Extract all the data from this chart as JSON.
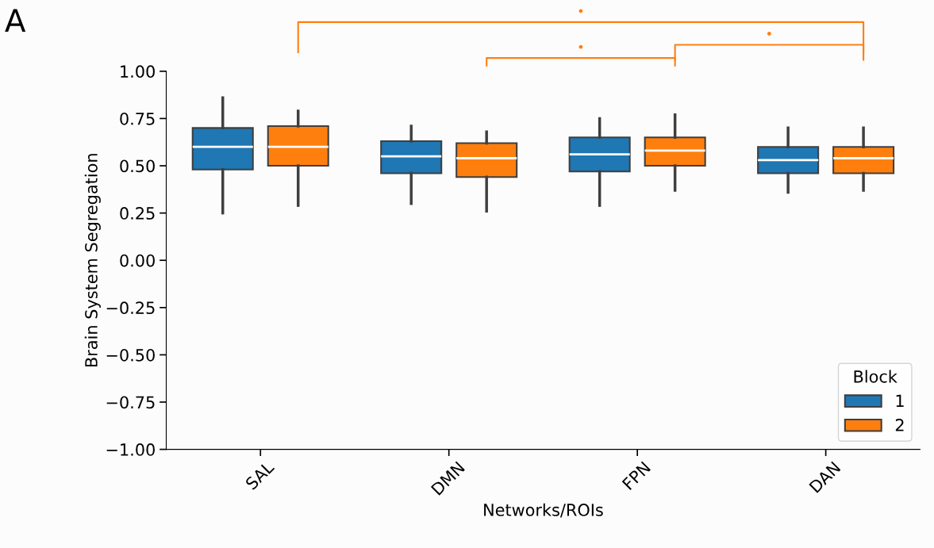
{
  "chart_data": {
    "type": "box",
    "xlabel": "Networks/ROIs",
    "ylabel": "Brain System Segregation",
    "categories": [
      "SAL",
      "DMN",
      "FPN",
      "DAN"
    ],
    "series": [
      {
        "name": "1",
        "color": "#1f77b4",
        "boxes": [
          {
            "low": 0.25,
            "q1": 0.48,
            "median": 0.6,
            "q3": 0.7,
            "high": 0.86
          },
          {
            "low": 0.3,
            "q1": 0.46,
            "median": 0.55,
            "q3": 0.63,
            "high": 0.71
          },
          {
            "low": 0.29,
            "q1": 0.47,
            "median": 0.56,
            "q3": 0.65,
            "high": 0.75
          },
          {
            "low": 0.36,
            "q1": 0.46,
            "median": 0.53,
            "q3": 0.6,
            "high": 0.7
          }
        ]
      },
      {
        "name": "2",
        "color": "#ff7f0e",
        "boxes": [
          {
            "low": 0.29,
            "q1": 0.5,
            "median": 0.6,
            "q3": 0.71,
            "high": 0.79
          },
          {
            "low": 0.26,
            "q1": 0.44,
            "median": 0.54,
            "q3": 0.62,
            "high": 0.68
          },
          {
            "low": 0.37,
            "q1": 0.5,
            "median": 0.58,
            "q3": 0.65,
            "high": 0.77
          },
          {
            "low": 0.37,
            "q1": 0.46,
            "median": 0.54,
            "q3": 0.6,
            "high": 0.7
          }
        ]
      }
    ],
    "ylim": [
      -1.0,
      1.0
    ],
    "yticks": [
      {
        "value": -1.0,
        "label": "−1.00"
      },
      {
        "value": -0.75,
        "label": "−0.75"
      },
      {
        "value": -0.5,
        "label": "−0.50"
      },
      {
        "value": -0.25,
        "label": "−0.25"
      },
      {
        "value": 0.0,
        "label": "0.00"
      },
      {
        "value": 0.25,
        "label": "0.25"
      },
      {
        "value": 0.5,
        "label": "0.50"
      },
      {
        "value": 0.75,
        "label": "0.75"
      },
      {
        "value": 1.0,
        "label": "1.00"
      }
    ],
    "legend": "bottom right",
    "legend_title": "Block",
    "grid": false,
    "annotations": [
      "A",
      "•",
      "•",
      "•"
    ]
  }
}
